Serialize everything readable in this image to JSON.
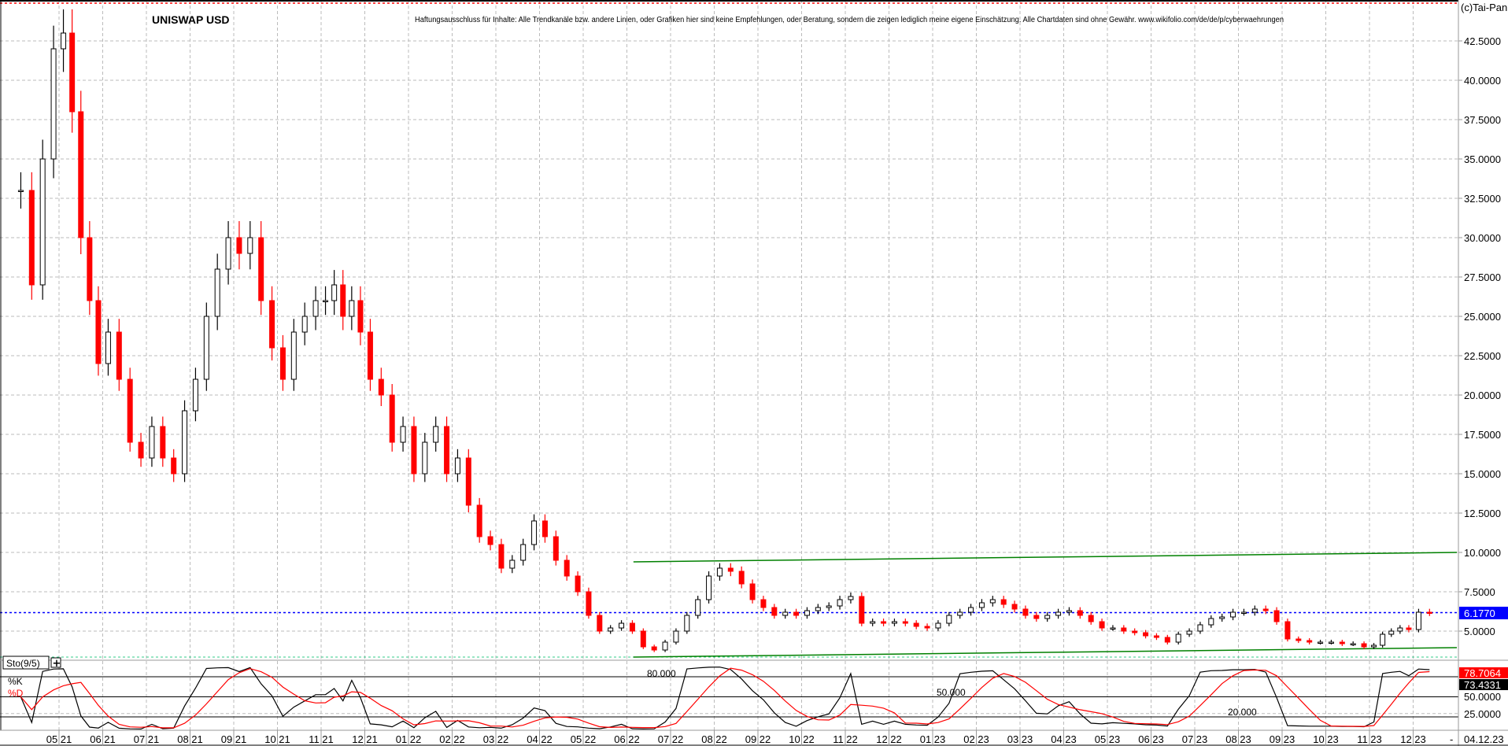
{
  "chart_data": {
    "type": "candlestick",
    "title": "UNISWAP USD",
    "disclaimer": "Haftungsausschluss für Inhalte: Alle Trendkanäle bzw. andere Linien, oder Grafiken hier sind keine Empfehlungen, oder Beratung, sondern die zeigen lediglich meine eigene Einschätzung. Alle Chartdaten sind ohne Gewähr.  www.wikifolio.com/de/de/p/cyberwaehrungen",
    "copyright": "(c)Tai-Pan",
    "grid": true,
    "y_ticks": [
      "5.0000",
      "7.5000",
      "10.0000",
      "12.5000",
      "15.0000",
      "17.5000",
      "20.0000",
      "22.5000",
      "25.0000",
      "27.5000",
      "30.0000",
      "32.5000",
      "35.0000",
      "37.5000",
      "40.0000",
      "42.5000"
    ],
    "y_tick_values": [
      5,
      7.5,
      10,
      12.5,
      15,
      17.5,
      20,
      22.5,
      25,
      27.5,
      30,
      32.5,
      35,
      37.5,
      40,
      42.5
    ],
    "x_tick_labels": [
      "05 21",
      "06 21",
      "07 21",
      "08 21",
      "09 21",
      "10 21",
      "11 21",
      "12 21",
      "01 22",
      "02 22",
      "03 22",
      "04 22",
      "05 22",
      "06 22",
      "07 22",
      "08 22",
      "09 22",
      "10 22",
      "11 22",
      "12 22",
      "01 23",
      "02 23",
      "03 23",
      "04 23",
      "05 23",
      "06 23",
      "07 23",
      "08 23",
      "09 23",
      "10 23",
      "11 23",
      "12 23"
    ],
    "last_date": "04.12.23",
    "last_price": "6.1770",
    "last_price_value": 6.177,
    "range_high": 44.9,
    "range_low": 3.35,
    "colors": {
      "up": "#000000",
      "down": "#ff0000",
      "last_price": "#0000ff",
      "trend": "#008000",
      "k": "#000000",
      "d": "#ff0000"
    },
    "closes_by_month": [
      {
        "month": "2021-04",
        "closes": [
          33,
          27,
          35,
          42
        ]
      },
      {
        "month": "2021-05",
        "closes": [
          43,
          38,
          30,
          26,
          22
        ]
      },
      {
        "month": "2021-06",
        "closes": [
          24,
          21,
          17,
          16
        ]
      },
      {
        "month": "2021-07",
        "closes": [
          18,
          16,
          15,
          19
        ]
      },
      {
        "month": "2021-08",
        "closes": [
          21,
          25,
          28,
          30
        ]
      },
      {
        "month": "2021-09",
        "closes": [
          29,
          30,
          26,
          23
        ]
      },
      {
        "month": "2021-10",
        "closes": [
          21,
          24,
          25,
          26
        ]
      },
      {
        "month": "2021-11",
        "closes": [
          26,
          27,
          25,
          26,
          24
        ]
      },
      {
        "month": "2021-12",
        "closes": [
          21,
          20,
          17,
          18
        ]
      },
      {
        "month": "2022-01",
        "closes": [
          15,
          17,
          18,
          15
        ]
      },
      {
        "month": "2022-02",
        "closes": [
          16,
          13,
          11,
          10.5
        ]
      },
      {
        "month": "2022-03",
        "closes": [
          9,
          9.5,
          10.5,
          12
        ]
      },
      {
        "month": "2022-04",
        "closes": [
          11,
          9.5,
          8.5,
          7.5
        ]
      },
      {
        "month": "2022-05",
        "closes": [
          6,
          5,
          5.2,
          5.5
        ]
      },
      {
        "month": "2022-06",
        "closes": [
          5,
          4,
          3.8,
          4.3
        ]
      },
      {
        "month": "2022-07",
        "closes": [
          5,
          6,
          7,
          8.5
        ]
      },
      {
        "month": "2022-08",
        "closes": [
          9,
          8.8,
          8,
          7
        ]
      },
      {
        "month": "2022-09",
        "closes": [
          6.5,
          6,
          6.2,
          6
        ]
      },
      {
        "month": "2022-10",
        "closes": [
          6.3,
          6.5,
          6.6,
          7
        ]
      },
      {
        "month": "2022-11",
        "closes": [
          7.2,
          5.5,
          5.6,
          5.5
        ]
      },
      {
        "month": "2022-12",
        "closes": [
          5.6,
          5.5,
          5.3,
          5.2
        ]
      },
      {
        "month": "2023-01",
        "closes": [
          5.5,
          6,
          6.2,
          6.5
        ]
      },
      {
        "month": "2023-02",
        "closes": [
          6.8,
          7,
          6.7,
          6.4
        ]
      },
      {
        "month": "2023-03",
        "closes": [
          6,
          5.8,
          6,
          6.2
        ]
      },
      {
        "month": "2023-04",
        "closes": [
          6.3,
          6,
          5.6,
          5.2
        ]
      },
      {
        "month": "2023-05",
        "closes": [
          5.2,
          5,
          4.9,
          4.7
        ]
      },
      {
        "month": "2023-06",
        "closes": [
          4.6,
          4.3,
          4.8,
          5
        ]
      },
      {
        "month": "2023-07",
        "closes": [
          5.4,
          5.8,
          5.9,
          6.2
        ]
      },
      {
        "month": "2023-08",
        "closes": [
          6.2,
          6.4,
          6.3,
          5.6
        ]
      },
      {
        "month": "2023-09",
        "closes": [
          4.5,
          4.4,
          4.3,
          4.3
        ]
      },
      {
        "month": "2023-10",
        "closes": [
          4.3,
          4.2,
          4.2,
          4
        ]
      },
      {
        "month": "2023-11",
        "closes": [
          4.1,
          4.8,
          5,
          5.2,
          5.1
        ]
      },
      {
        "month": "2023-12",
        "closes": [
          6.2,
          6.177
        ]
      }
    ],
    "trend_lines": [
      {
        "from": {
          "month": "2022-06",
          "price": 9.4
        },
        "to": {
          "month": "2023-12",
          "price": 10.0
        }
      },
      {
        "from": {
          "month": "2022-06",
          "price": 3.35
        },
        "to": {
          "month": "2023-12",
          "price": 3.95
        }
      }
    ],
    "indicator": {
      "name": "Sto(9/5)",
      "k_label": "%K",
      "d_label": "%D",
      "k_value": "73.4331",
      "d_value": "78.7064",
      "levels": [
        80,
        50,
        20
      ],
      "level_labels": [
        "80.000",
        "50.000",
        "20.000"
      ],
      "y_ticks": [
        "25.0000",
        "50.0000"
      ],
      "ylim": [
        0,
        100
      ]
    }
  }
}
